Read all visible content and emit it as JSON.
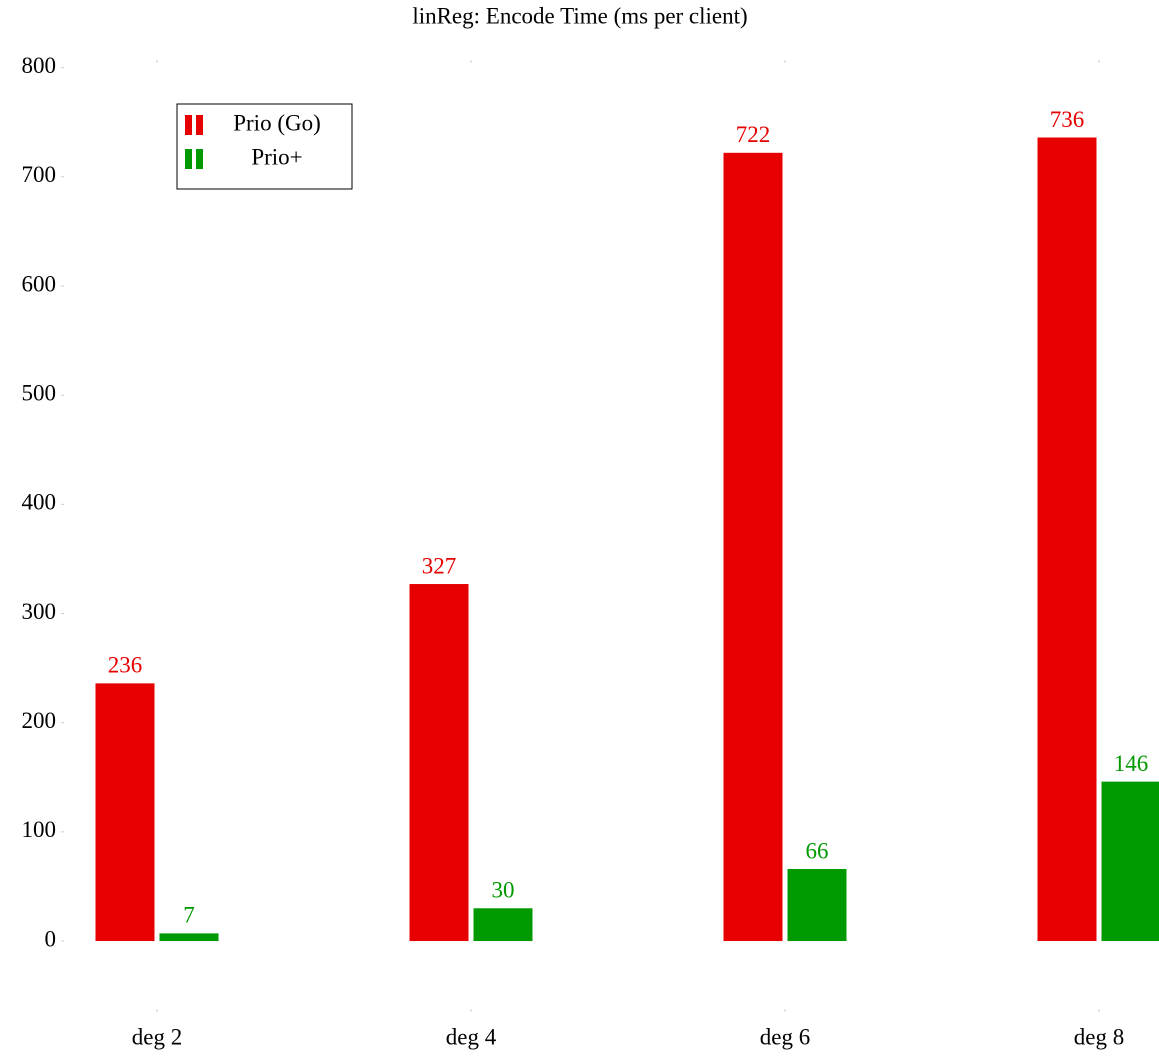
{
  "chart_data": {
    "type": "bar",
    "title": "linReg: Encode Time (ms per client)",
    "categories": [
      "deg 2",
      "deg 4",
      "deg 6",
      "deg 8"
    ],
    "series": [
      {
        "name": "Prio (Go)",
        "color": "#e60000",
        "values": [
          236,
          327,
          722,
          736
        ]
      },
      {
        "name": "Prio+",
        "color": "#009900",
        "values": [
          7,
          30,
          66,
          146
        ]
      }
    ],
    "ylim": [
      -65,
      807
    ],
    "yticks": [
      0,
      100,
      200,
      300,
      400,
      500,
      600,
      700,
      800
    ],
    "grid": false,
    "legend": "upper left"
  }
}
